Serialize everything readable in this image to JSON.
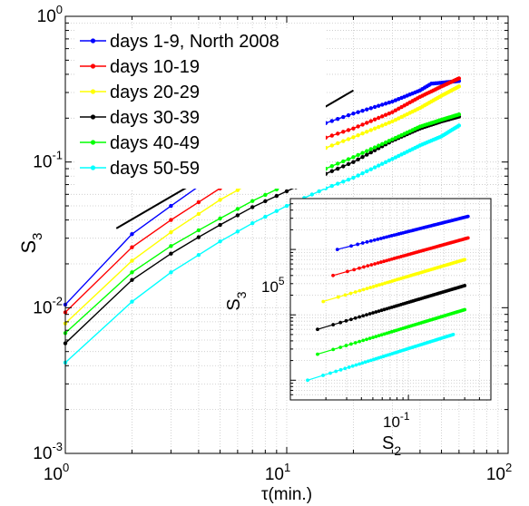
{
  "chart_data": [
    {
      "type": "line",
      "xlabel": "τ(min.)",
      "ylabel": "S",
      "ylabel_sub": "3",
      "xscale": "log",
      "yscale": "log",
      "xlim": [
        1,
        100
      ],
      "ylim": [
        0.001,
        1
      ],
      "grid": "on",
      "legend_position": "top-left",
      "x_ticks": [
        {
          "base": "10",
          "exp": "0",
          "value": 1
        },
        {
          "base": "10",
          "exp": "1",
          "value": 10
        },
        {
          "base": "10",
          "exp": "2",
          "value": 100
        }
      ],
      "y_ticks": [
        {
          "base": "10",
          "exp": "-3",
          "value": 0.001
        },
        {
          "base": "10",
          "exp": "-2",
          "value": 0.01
        },
        {
          "base": "10",
          "exp": "-1",
          "value": 0.1
        },
        {
          "base": "10",
          "exp": "0",
          "value": 1
        }
      ],
      "x": [
        1,
        2,
        3,
        4,
        5,
        6,
        7,
        8,
        9,
        10,
        11,
        12,
        13,
        14,
        15,
        16,
        17,
        18,
        19,
        20,
        21,
        22,
        23,
        24,
        25,
        26,
        27,
        28,
        29,
        30,
        31,
        32,
        33,
        34,
        35,
        36,
        37,
        38,
        39,
        40,
        41,
        42,
        43,
        44,
        45,
        46,
        47,
        48,
        49,
        50,
        51,
        52,
        53,
        54,
        55,
        56,
        57,
        58,
        59,
        60
      ],
      "series": [
        {
          "name": "days 1-9, North 2008",
          "color": "#0000ff",
          "anchors": [
            [
              1,
              0.0105
            ],
            [
              2,
              0.032
            ],
            [
              3,
              0.05
            ],
            [
              4,
              0.068
            ],
            [
              5,
              0.085
            ],
            [
              7,
              0.112
            ],
            [
              10,
              0.145
            ],
            [
              15,
              0.185
            ],
            [
              20,
              0.215
            ],
            [
              30,
              0.26
            ],
            [
              40,
              0.31
            ],
            [
              45,
              0.345
            ],
            [
              50,
              0.35
            ],
            [
              60,
              0.36
            ]
          ]
        },
        {
          "name": "days 10-19",
          "color": "#ff0000",
          "anchors": [
            [
              1,
              0.0093
            ],
            [
              2,
              0.026
            ],
            [
              3,
              0.04
            ],
            [
              4,
              0.053
            ],
            [
              5,
              0.066
            ],
            [
              7,
              0.088
            ],
            [
              10,
              0.113
            ],
            [
              15,
              0.147
            ],
            [
              20,
              0.17
            ],
            [
              30,
              0.22
            ],
            [
              40,
              0.28
            ],
            [
              50,
              0.33
            ],
            [
              60,
              0.375
            ]
          ]
        },
        {
          "name": "days 20-29",
          "color": "#ffff00",
          "anchors": [
            [
              1,
              0.0078
            ],
            [
              2,
              0.021
            ],
            [
              3,
              0.033
            ],
            [
              4,
              0.044
            ],
            [
              5,
              0.055
            ],
            [
              7,
              0.073
            ],
            [
              10,
              0.095
            ],
            [
              15,
              0.125
            ],
            [
              20,
              0.148
            ],
            [
              30,
              0.19
            ],
            [
              40,
              0.235
            ],
            [
              50,
              0.285
            ],
            [
              60,
              0.33
            ]
          ]
        },
        {
          "name": "days 30-39",
          "color": "#000000",
          "anchors": [
            [
              1,
              0.0057
            ],
            [
              2,
              0.0155
            ],
            [
              3,
              0.0235
            ],
            [
              4,
              0.0305
            ],
            [
              5,
              0.037
            ],
            [
              7,
              0.049
            ],
            [
              10,
              0.063
            ],
            [
              15,
              0.083
            ],
            [
              20,
              0.1
            ],
            [
              30,
              0.14
            ],
            [
              40,
              0.17
            ],
            [
              50,
              0.19
            ],
            [
              60,
              0.205
            ]
          ]
        },
        {
          "name": "days 40-49",
          "color": "#00ff00",
          "anchors": [
            [
              1,
              0.0067
            ],
            [
              2,
              0.0175
            ],
            [
              3,
              0.0265
            ],
            [
              4,
              0.034
            ],
            [
              5,
              0.041
            ],
            [
              7,
              0.054
            ],
            [
              10,
              0.07
            ],
            [
              15,
              0.09
            ],
            [
              20,
              0.108
            ],
            [
              30,
              0.143
            ],
            [
              40,
              0.175
            ],
            [
              50,
              0.195
            ],
            [
              60,
              0.212
            ]
          ]
        },
        {
          "name": "days 50-59",
          "color": "#00ffff",
          "anchors": [
            [
              1,
              0.0042
            ],
            [
              2,
              0.011
            ],
            [
              3,
              0.0175
            ],
            [
              4,
              0.023
            ],
            [
              5,
              0.0285
            ],
            [
              7,
              0.038
            ],
            [
              10,
              0.05
            ],
            [
              15,
              0.066
            ],
            [
              20,
              0.078
            ],
            [
              30,
              0.105
            ],
            [
              40,
              0.13
            ],
            [
              50,
              0.15
            ],
            [
              60,
              0.178
            ]
          ]
        }
      ],
      "reference_line": {
        "color": "#000000",
        "points": [
          [
            1.7,
            0.035
          ],
          [
            20,
            0.31
          ]
        ]
      }
    },
    {
      "type": "scatter",
      "role": "inset",
      "xlabel": "S",
      "xlabel_sub": "2",
      "ylabel": "S",
      "ylabel_sub": "3",
      "xscale": "log",
      "yscale": "log",
      "x_tick": {
        "base": "10",
        "exp": "-1"
      },
      "y_tick": {
        "base": "10",
        "exp": "5"
      },
      "series": [
        {
          "color": "#0000ff",
          "x_range": [
            0.025,
            0.32
          ],
          "y_range": [
            1000000.0,
            3200000.0
          ]
        },
        {
          "color": "#ff0000",
          "x_range": [
            0.023,
            0.32
          ],
          "y_range": [
            400000.0,
            1500000.0
          ]
        },
        {
          "color": "#ffff00",
          "x_range": [
            0.019,
            0.3
          ],
          "y_range": [
            160000.0,
            700000.0
          ]
        },
        {
          "color": "#000000",
          "x_range": [
            0.017,
            0.3
          ],
          "y_range": [
            60000.0,
            280000.0
          ]
        },
        {
          "color": "#00ff00",
          "x_range": [
            0.017,
            0.3
          ],
          "y_range": [
            25000.0,
            120000.0
          ]
        },
        {
          "color": "#00ffff",
          "x_range": [
            0.014,
            0.24
          ],
          "y_range": [
            10000.0,
            50000.0
          ]
        }
      ]
    }
  ]
}
